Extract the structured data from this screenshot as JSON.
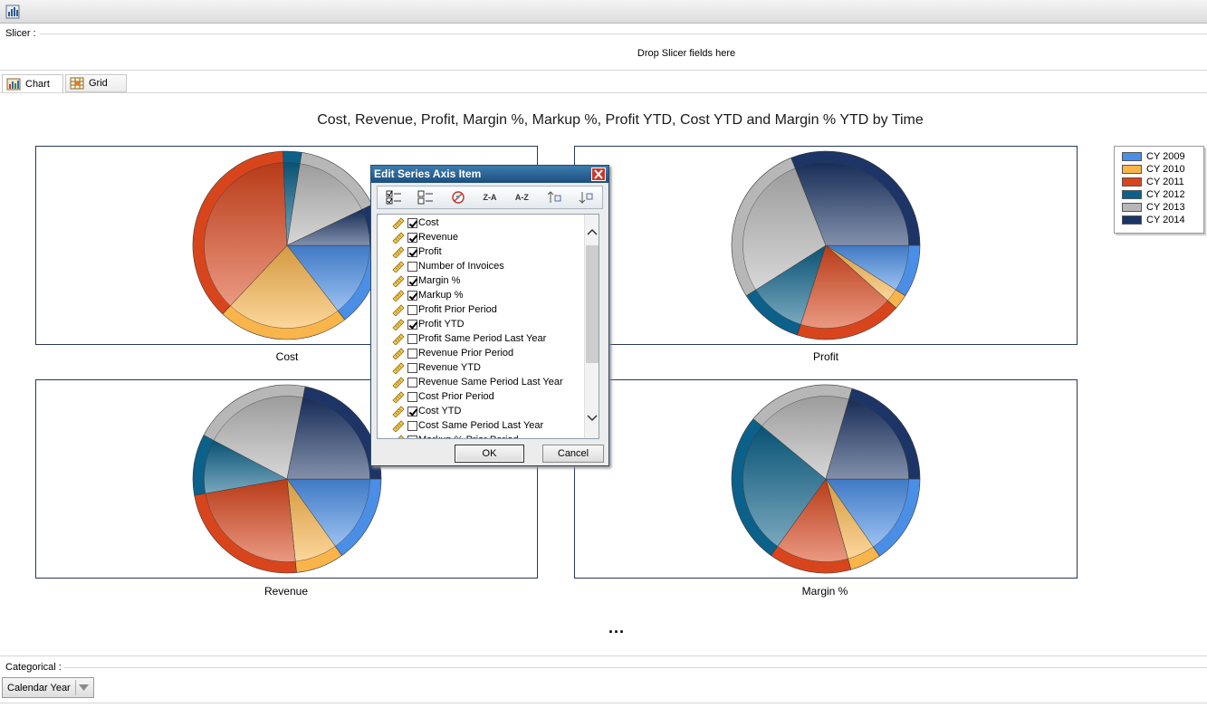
{
  "slicer": {
    "label": "Slicer :",
    "drop_hint": "Drop Slicer fields here"
  },
  "tabs": [
    {
      "label": "Chart"
    },
    {
      "label": "Grid"
    }
  ],
  "chart_data": [
    {
      "type": "pie",
      "title": "Cost, Revenue, Profit, Margin %, Markup %, Profit YTD, Cost YTD and Margin % YTD by Time",
      "series_name": "Cost",
      "categories": [
        "CY 2009",
        "CY 2010",
        "CY 2011",
        "CY 2012",
        "CY 2013",
        "CY 2014"
      ],
      "values": [
        14.5,
        22.5,
        37.3,
        3.2,
        15.4,
        7.1
      ],
      "colors": [
        "#4a8ee6",
        "#f9b44a",
        "#d8451c",
        "#0b6189",
        "#b7b7b7",
        "#1c3566"
      ],
      "legend": "right"
    },
    {
      "type": "pie",
      "series_name": "Profit",
      "categories": [
        "CY 2009",
        "CY 2010",
        "CY 2011",
        "CY 2012",
        "CY 2013",
        "CY 2014"
      ],
      "values": [
        9.0,
        2.6,
        18.3,
        11.1,
        28.0,
        31.0
      ],
      "colors": [
        "#4a8ee6",
        "#f9b44a",
        "#d8451c",
        "#0b6189",
        "#b7b7b7",
        "#1c3566"
      ]
    },
    {
      "type": "pie",
      "series_name": "Revenue",
      "categories": [
        "CY 2009",
        "CY 2010",
        "CY 2011",
        "CY 2012",
        "CY 2013",
        "CY 2014"
      ],
      "values": [
        15.1,
        8.3,
        23.8,
        10.5,
        20.4,
        21.9
      ],
      "colors": [
        "#4a8ee6",
        "#f9b44a",
        "#d8451c",
        "#0b6189",
        "#b7b7b7",
        "#1c3566"
      ]
    },
    {
      "type": "pie",
      "series_name": "Margin %",
      "categories": [
        "CY 2009",
        "CY 2010",
        "CY 2011",
        "CY 2012",
        "CY 2013",
        "CY 2014"
      ],
      "values": [
        15.3,
        5.4,
        14.2,
        26.1,
        18.5,
        20.5
      ],
      "colors": [
        "#4a8ee6",
        "#f9b44a",
        "#d8451c",
        "#0b6189",
        "#b7b7b7",
        "#1c3566"
      ]
    }
  ],
  "legend": [
    {
      "label": "CY 2009",
      "color": "#4a8ee6"
    },
    {
      "label": "CY 2010",
      "color": "#f9b44a"
    },
    {
      "label": "CY 2011",
      "color": "#d8451c"
    },
    {
      "label": "CY 2012",
      "color": "#0b6189"
    },
    {
      "label": "CY 2013",
      "color": "#b7b7b7"
    },
    {
      "label": "CY 2014",
      "color": "#1c3566"
    }
  ],
  "more_indicator": "...",
  "categorical": {
    "label": "Categorical :",
    "value": "Calendar Year"
  },
  "dialog": {
    "title": "Edit Series Axis Item",
    "toolbar": [
      "check-all",
      "uncheck-all",
      "clear",
      "Z-A",
      "A-Z",
      "move-up",
      "move-down"
    ],
    "items": [
      {
        "label": "Cost",
        "checked": true
      },
      {
        "label": "Revenue",
        "checked": true
      },
      {
        "label": "Profit",
        "checked": true
      },
      {
        "label": "Number of Invoices",
        "checked": false
      },
      {
        "label": "Margin %",
        "checked": true
      },
      {
        "label": "Markup %",
        "checked": true
      },
      {
        "label": "Profit Prior Period",
        "checked": false
      },
      {
        "label": "Profit YTD",
        "checked": true
      },
      {
        "label": "Profit Same Period Last Year",
        "checked": false
      },
      {
        "label": "Revenue Prior Period",
        "checked": false
      },
      {
        "label": "Revenue YTD",
        "checked": false
      },
      {
        "label": "Revenue Same Period Last Year",
        "checked": false
      },
      {
        "label": "Cost Prior Period",
        "checked": false
      },
      {
        "label": "Cost YTD",
        "checked": true
      },
      {
        "label": "Cost Same Period Last Year",
        "checked": false
      },
      {
        "label": "Markup % Prior Period",
        "checked": false
      }
    ],
    "ok_label": "OK",
    "cancel_label": "Cancel"
  }
}
